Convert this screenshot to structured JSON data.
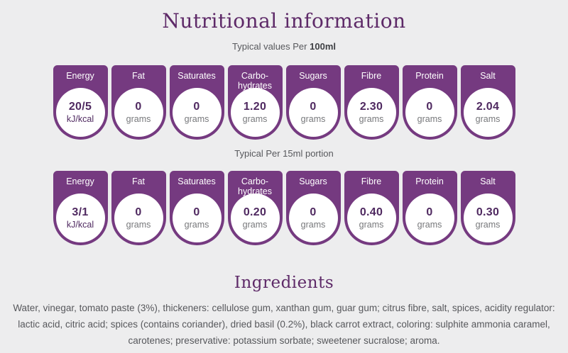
{
  "page": {
    "title": "Nutritional information",
    "caption_100ml": {
      "prefix": "Typical values Per",
      "bold": "100ml"
    },
    "caption_15ml": "Typical Per 15ml portion",
    "ingredients": {
      "title": "Ingredients",
      "text": "Water, vinegar, tomato paste (3%), thickeners: cellulose gum, xanthan gum, guar gum; citrus fibre, salt, spices, acidity regulator: lactic acid, citric acid; spices (contains coriander), dried basil (0.2%), black carrot extract, coloring: sulphite ammonia caramel, carotenes; preservative: potassium sorbate; sweetener sucralose; aroma."
    }
  },
  "colors": {
    "background": "#ededee",
    "card_purple": "#753a80",
    "heading_purple": "#5e2a68",
    "value_purple": "#4f2960",
    "text_gray": "#57585c",
    "unit_gray": "#77787b",
    "card_label_white": "#ffffff"
  },
  "per_100ml": {
    "cards": [
      {
        "label": "Energy",
        "value": "20/5",
        "unit": "kJ/kcal",
        "unit_purple": true
      },
      {
        "label": "Fat",
        "value": "0",
        "unit": "grams"
      },
      {
        "label": "Saturates",
        "value": "0",
        "unit": "grams"
      },
      {
        "label": "Carbo-\nhydrates",
        "value": "1.20",
        "unit": "grams"
      },
      {
        "label": "Sugars",
        "value": "0",
        "unit": "grams"
      },
      {
        "label": "Fibre",
        "value": "2.30",
        "unit": "grams"
      },
      {
        "label": "Protein",
        "value": "0",
        "unit": "grams"
      },
      {
        "label": "Salt",
        "value": "2.04",
        "unit": "grams"
      }
    ]
  },
  "per_15ml": {
    "cards": [
      {
        "label": "Energy",
        "value": "3/1",
        "unit": "kJ/kcal",
        "unit_purple": true
      },
      {
        "label": "Fat",
        "value": "0",
        "unit": "grams"
      },
      {
        "label": "Saturates",
        "value": "0",
        "unit": "grams"
      },
      {
        "label": "Carbo-\nhydrates",
        "value": "0.20",
        "unit": "grams"
      },
      {
        "label": "Sugars",
        "value": "0",
        "unit": "grams"
      },
      {
        "label": "Fibre",
        "value": "0.40",
        "unit": "grams"
      },
      {
        "label": "Protein",
        "value": "0",
        "unit": "grams"
      },
      {
        "label": "Salt",
        "value": "0.30",
        "unit": "grams"
      }
    ]
  }
}
